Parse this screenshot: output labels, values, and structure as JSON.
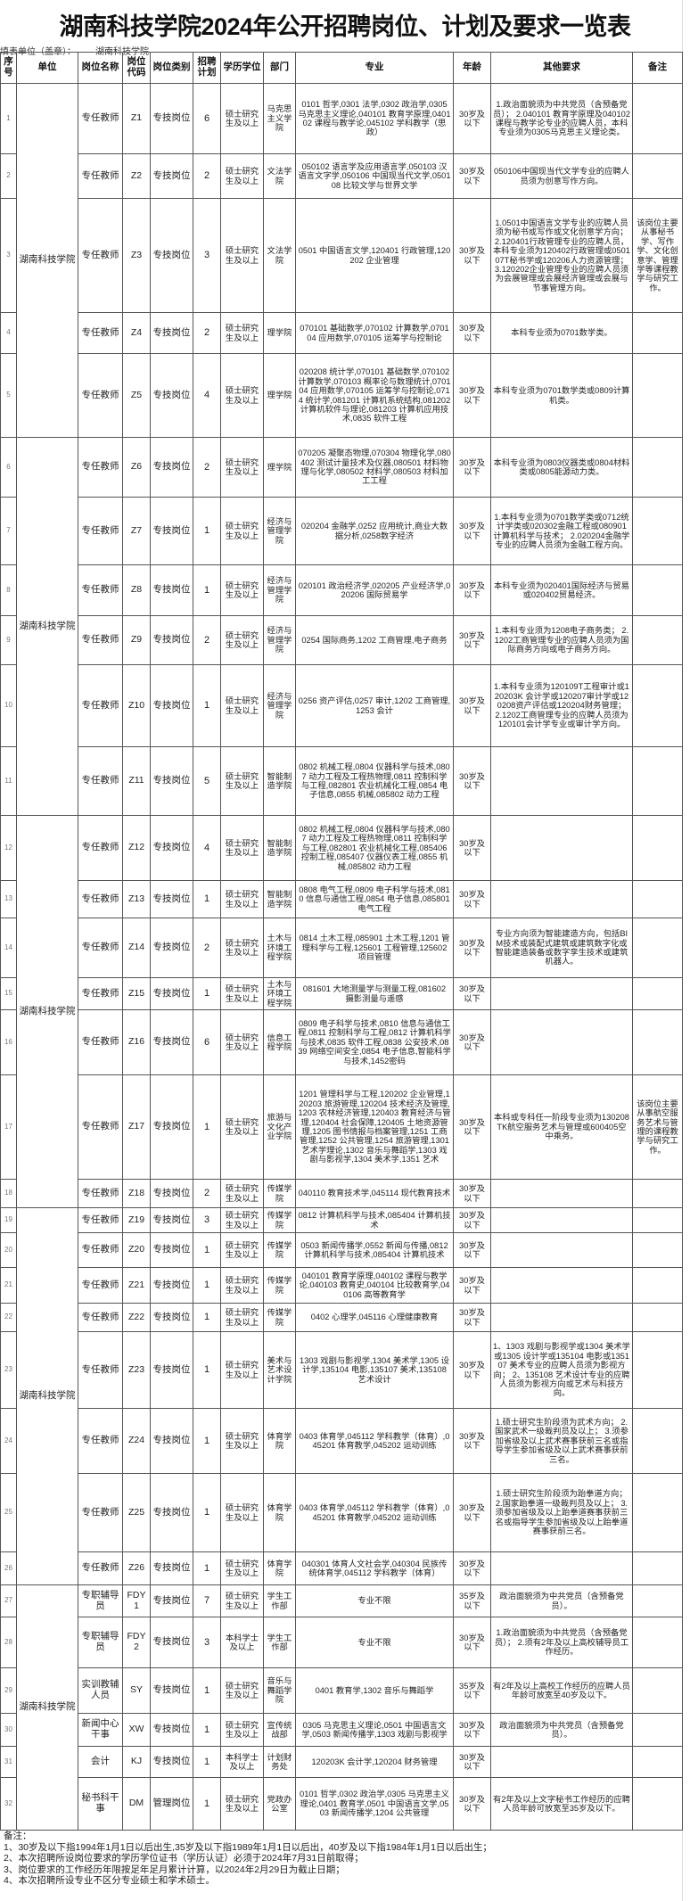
{
  "title": "湖南科技学院2024年公开招聘岗位、计划及要求一览表",
  "filler": {
    "label": "填表单位（盖章）：",
    "value": "湖南科技学院"
  },
  "headers": [
    "序号",
    "单位",
    "岗位名称",
    "岗位代码",
    "岗位类别",
    "招聘计划",
    "学历学位",
    "部门",
    "专业",
    "年龄",
    "其他要求",
    "备注"
  ],
  "unit_groups": [
    {
      "unit": "湖南科技学院",
      "from": 1,
      "to": 5
    },
    {
      "unit": "湖南科技学院",
      "from": 6,
      "to": 11
    },
    {
      "unit": "湖南科技学院",
      "from": 12,
      "to": 18
    },
    {
      "unit": "湖南科技学院",
      "from": 19,
      "to": 26
    },
    {
      "unit": "湖南科技学院",
      "from": 27,
      "to": 32
    }
  ],
  "rows": [
    {
      "no": "1",
      "post": "专任教师",
      "code": "Z1",
      "type": "专技岗位",
      "plan": "6",
      "edu": "硕士研究生及以上",
      "dept": "马克思主义学院",
      "major": "0101 哲学,0301 法学,0302 政治学,0305 马克思主义理论,040101 教育学原理,040102 课程与教学论,045102 学科教学（思政）",
      "age": "30岁及以下",
      "other": "1.政治面貌须为中共党员（含预备党员）； 2.040101 教育学原理及040102课程与教学论专业的应聘人员，本科专业须为0305马克思主义理论类。",
      "note": ""
    },
    {
      "no": "2",
      "post": "专任教师",
      "code": "Z2",
      "type": "专技岗位",
      "plan": "2",
      "edu": "硕士研究生及以上",
      "dept": "文法学院",
      "major": "050102 语言学及应用语言学,050103 汉语言文字学,050106 中国现当代文学,050108 比较文学与世界文学",
      "age": "30岁及以下",
      "other": "050106中国现当代文学专业的应聘人员须为创意写作方向。",
      "note": ""
    },
    {
      "no": "3",
      "post": "专任教师",
      "code": "Z3",
      "type": "专技岗位",
      "plan": "3",
      "edu": "硕士研究生及以上",
      "dept": "文法学院",
      "major": "0501 中国语言文学,120401 行政管理,120202 企业管理",
      "age": "30岁及以下",
      "other": "1.0501中国语言文学专业的应聘人员须为秘书或写作或文化创意学方向； 2.120401行政管理专业的应聘人员，本科专业须为120402行政管理或050107T秘书学或120206人力资源管理；3.120202企业管理专业的应聘人员须为会展管理或会展经济管理或会展与节事管理方向。",
      "note": "该岗位主要从事秘书学、写作学、文化创意学、管理学等课程教学与研究工作。"
    },
    {
      "no": "4",
      "post": "专任教师",
      "code": "Z4",
      "type": "专技岗位",
      "plan": "2",
      "edu": "硕士研究生及以上",
      "dept": "理学院",
      "major": "070101 基础数学,070102 计算数学,070104 应用数学,070105 运筹学与控制论",
      "age": "30岁及以下",
      "other": "本科专业须为0701数学类。",
      "note": ""
    },
    {
      "no": "5",
      "post": "专任教师",
      "code": "Z5",
      "type": "专技岗位",
      "plan": "4",
      "edu": "硕士研究生及以上",
      "dept": "理学院",
      "major": "020208 统计学,070101 基础数学,070102 计算数学,070103 概率论与数理统计,070104 应用数学,070105 运筹学与控制论,0714 统计学,081201 计算机系统结构,081202 计算机软件与理论,081203 计算机应用技术,0835 软件工程",
      "age": "30岁及以下",
      "other": "本科专业须为0701数学类或0809计算机类。",
      "note": ""
    },
    {
      "no": "6",
      "post": "专任教师",
      "code": "Z6",
      "type": "专技岗位",
      "plan": "2",
      "edu": "硕士研究生及以上",
      "dept": "理学院",
      "major": "070205 凝聚态物理,070304 物理化学,080402 测试计量技术及仪器,080501 材料物理与化学,080502 材料学,080503 材料加工工程",
      "age": "30岁及以下",
      "other": "本科专业须为0803仪器类或0804材料类或0805能源动力类。",
      "note": ""
    },
    {
      "no": "7",
      "post": "专任教师",
      "code": "Z7",
      "type": "专技岗位",
      "plan": "1",
      "edu": "硕士研究生及以上",
      "dept": "经济与管理学院",
      "major": "020204 金融学,0252 应用统计,商业大数据分析,0258数字经济",
      "age": "30岁及以下",
      "other": "1.本科专业须为0701数学类或0712统计学类或020302金融工程或080901计算机科学与技术； 2.020204金融学专业的应聘人员须为金融工程方向。",
      "note": ""
    },
    {
      "no": "8",
      "post": "专任教师",
      "code": "Z8",
      "type": "专技岗位",
      "plan": "1",
      "edu": "硕士研究生及以上",
      "dept": "经济与管理学院",
      "major": "020101 政治经济学,020205 产业经济学,020206 国际贸易学",
      "age": "30岁及以下",
      "other": "本科专业须为020401国际经济与贸易或020402贸易经济。",
      "note": ""
    },
    {
      "no": "9",
      "post": "专任教师",
      "code": "Z9",
      "type": "专技岗位",
      "plan": "2",
      "edu": "硕士研究生及以上",
      "dept": "经济与管理学院",
      "major": "0254 国际商务,1202 工商管理,电子商务",
      "age": "30岁及以下",
      "other": "1.本科专业须为1208电子商务类； 2.1202工商管理专业的应聘人员须为国际商务方向或电子商务方向。",
      "note": ""
    },
    {
      "no": "10",
      "post": "专任教师",
      "code": "Z10",
      "type": "专技岗位",
      "plan": "1",
      "edu": "硕士研究生及以上",
      "dept": "经济与管理学院",
      "major": "0256 资产评估,0257 审计,1202 工商管理,1253 会计",
      "age": "30岁及以下",
      "other": "1.本科专业须为120109T工程审计或120203K 会计学或120207审计学或120208资产评估或120204财务管理； 2.1202工商管理专业的应聘人员须为120101会计学专业或审计学方向。",
      "note": ""
    },
    {
      "no": "11",
      "post": "专任教师",
      "code": "Z11",
      "type": "专技岗位",
      "plan": "5",
      "edu": "硕士研究生及以上",
      "dept": "智能制造学院",
      "major": "0802 机械工程,0804 仪器科学与技术,0807 动力工程及工程热物理,0811 控制科学与工程,082801 农业机械化工程,0854 电子信息,0855 机械,085802 动力工程",
      "age": "30岁及以下",
      "other": "",
      "note": ""
    },
    {
      "no": "12",
      "post": "专任教师",
      "code": "Z12",
      "type": "专技岗位",
      "plan": "4",
      "edu": "硕士研究生及以上",
      "dept": "智能制造学院",
      "major": "0802 机械工程,0804 仪器科学与技术,0807 动力工程及工程热物理,0811 控制科学与工程,082801 农业机械化工程,085406 控制工程,085407 仪器仪表工程,0855 机械,085802 动力工程",
      "age": "30岁及以下",
      "other": "",
      "note": ""
    },
    {
      "no": "13",
      "post": "专任教师",
      "code": "Z13",
      "type": "专技岗位",
      "plan": "1",
      "edu": "硕士研究生及以上",
      "dept": "智能制造学院",
      "major": "0808 电气工程,0809 电子科学与技术,0810 信息与通信工程,0854 电子信息,085801 电气工程",
      "age": "30岁及以下",
      "other": "",
      "note": ""
    },
    {
      "no": "14",
      "post": "专任教师",
      "code": "Z14",
      "type": "专技岗位",
      "plan": "2",
      "edu": "硕士研究生及以上",
      "dept": "土木与环境工程学院",
      "major": "0814 土木工程,085901 土木工程,1201 管理科学与工程,125601 工程管理,125602 项目管理",
      "age": "30岁及以下",
      "other": "专业方向须为智能建造方向，包括BIM技术或装配式建筑或建筑数字化或智能建造装备或数字孪生技术或建筑机器人。",
      "note": ""
    },
    {
      "no": "15",
      "post": "专任教师",
      "code": "Z15",
      "type": "专技岗位",
      "plan": "1",
      "edu": "硕士研究生及以上",
      "dept": "土木与环境工程学院",
      "major": "081601 大地测量学与测量工程,081602 摄影测量与遥感",
      "age": "30岁及以下",
      "other": "",
      "note": ""
    },
    {
      "no": "16",
      "post": "专任教师",
      "code": "Z16",
      "type": "专技岗位",
      "plan": "6",
      "edu": "硕士研究生及以上",
      "dept": "信息工程学院",
      "major": "0809 电子科学与技术,0810 信息与通信工程,0811 控制科学与工程,0812 计算机科学与技术,0835 软件工程,0838 公安技术,0839 网络空间安全,0854 电子信息,智能科学与技术,1452密码",
      "age": "30岁及以下",
      "other": "",
      "note": ""
    },
    {
      "no": "17",
      "post": "专任教师",
      "code": "Z17",
      "type": "专技岗位",
      "plan": "1",
      "edu": "硕士研究生及以上",
      "dept": "旅游与文化产业学院",
      "major": "1201 管理科学与工程,120202 企业管理,120203 旅游管理,120204 技术经济及管理,1203 农林经济管理,120403 教育经济与管理,120404 社会保障,120405 土地资源管理,1205 图书情报与档案管理,1251 工商管理,1252 公共管理,1254 旅游管理,1301 艺术学理论,1302 音乐与舞蹈学,1303 戏剧与影视学,1304 美术学,1351 艺术",
      "age": "30岁及以下",
      "other": "本科或专科任一阶段专业须为130208TK航空服务艺术与管理或600405空中乘务。",
      "note": "该岗位主要从事航空服务艺术与管理的课程教学与研究工作。"
    },
    {
      "no": "18",
      "post": "专任教师",
      "code": "Z18",
      "type": "专技岗位",
      "plan": "2",
      "edu": "硕士研究生及以上",
      "dept": "传媒学院",
      "major": "040110 教育技术学,045114 现代教育技术",
      "age": "30岁及以下",
      "other": "",
      "note": ""
    },
    {
      "no": "19",
      "post": "专任教师",
      "code": "Z19",
      "type": "专技岗位",
      "plan": "3",
      "edu": "硕士研究生及以上",
      "dept": "传媒学院",
      "major": "0812 计算机科学与技术,085404 计算机技术",
      "age": "30岁及以下",
      "other": "",
      "note": ""
    },
    {
      "no": "20",
      "post": "专任教师",
      "code": "Z20",
      "type": "专技岗位",
      "plan": "1",
      "edu": "硕士研究生及以上",
      "dept": "传媒学院",
      "major": "0503 新闻传播学,0552 新闻与传播,0812 计算机科学与技术,085404 计算机技术",
      "age": "30岁及以下",
      "other": "",
      "note": ""
    },
    {
      "no": "21",
      "post": "专任教师",
      "code": "Z21",
      "type": "专技岗位",
      "plan": "1",
      "edu": "硕士研究生及以上",
      "dept": "传媒学院",
      "major": "040101 教育学原理,040102 课程与教学论,040103 教育史,040104 比较教育学,040106 高等教育学",
      "age": "30岁及以下",
      "other": "",
      "note": ""
    },
    {
      "no": "22",
      "post": "专任教师",
      "code": "Z22",
      "type": "专技岗位",
      "plan": "1",
      "edu": "硕士研究生及以上",
      "dept": "传媒学院",
      "major": "0402 心理学,045116 心理健康教育",
      "age": "30岁及以下",
      "other": "",
      "note": ""
    },
    {
      "no": "23",
      "post": "专任教师",
      "code": "Z23",
      "type": "专技岗位",
      "plan": "1",
      "edu": "硕士研究生及以上",
      "dept": "美术与艺术设计学院",
      "major": "1303 戏剧与影视学,1304 美术学,1305 设计学,135104 电影,135107 美术,135108 艺术设计",
      "age": "30岁及以下",
      "other": "1、1303 戏剧与影视学或1304 美术学或1305 设计学或135104 电影或135107 美术专业的应聘人员须为影视方向； 2、135108 艺术设计专业的应聘人员须为影视方向或艺术与科技方向。",
      "note": ""
    },
    {
      "no": "24",
      "post": "专任教师",
      "code": "Z24",
      "type": "专技岗位",
      "plan": "1",
      "edu": "硕士研究生及以上",
      "dept": "体育学院",
      "major": "0403 体育学,045112 学科教学（体育）,045201 体育教学,045202 运动训练",
      "age": "30岁及以下",
      "other": "1.硕士研究生阶段须为武术方向； 2.国家武术一级裁判员及以上； 3.须参加省级及以上武术赛事获前三名或指导学生参加省级及以上武术赛事获前三名。",
      "note": ""
    },
    {
      "no": "25",
      "post": "专任教师",
      "code": "Z25",
      "type": "专技岗位",
      "plan": "1",
      "edu": "硕士研究生及以上",
      "dept": "体育学院",
      "major": "0403 体育学,045112 学科教学（体育）,045201 体育教学,045202 运动训练",
      "age": "30岁及以下",
      "other": "1.硕士研究生阶段须为跆拳道方向； 2.国家跆拳道一级裁判员及以上； 3.须参加省级及以上跆拳道赛事获前三名或指导学生参加省级及以上跆拳道赛事获前三名。",
      "note": ""
    },
    {
      "no": "26",
      "post": "专任教师",
      "code": "Z26",
      "type": "专技岗位",
      "plan": "1",
      "edu": "硕士研究生及以上",
      "dept": "体育学院",
      "major": "040301 体育人文社会学,040304 民族传统体育学,045112 学科教学（体育）",
      "age": "30岁及以下",
      "other": "",
      "note": ""
    },
    {
      "no": "27",
      "post": "专职辅导员",
      "code": "FDY1",
      "type": "专技岗位",
      "plan": "7",
      "edu": "硕士研究生及以上",
      "dept": "学生工作部",
      "major": "专业不限",
      "age": "35岁及以下",
      "other": "政治面貌须为中共党员（含预备党员）。",
      "note": ""
    },
    {
      "no": "28",
      "post": "专职辅导员",
      "code": "FDY2",
      "type": "专技岗位",
      "plan": "3",
      "edu": "本科学士及以上",
      "dept": "学生工作部",
      "major": "专业不限",
      "age": "30岁及以下",
      "other": "1.政治面貌须为中共党员（含预备党员）； 2.须有2年及以上高校辅导员工作经历。",
      "note": ""
    },
    {
      "no": "29",
      "post": "实训教辅人员",
      "code": "SY",
      "type": "专技岗位",
      "plan": "1",
      "edu": "硕士研究生及以上",
      "dept": "音乐与舞蹈学院",
      "major": "0401 教育学,1302 音乐与舞蹈学",
      "age": "35岁及以下",
      "other": "有2年及以上高校工作经历的应聘人员年龄可放宽至40岁及以下。",
      "note": ""
    },
    {
      "no": "30",
      "post": "新闻中心干事",
      "code": "XW",
      "type": "专技岗位",
      "plan": "1",
      "edu": "硕士研究生及以上",
      "dept": "宣传统战部",
      "major": "0305 马克思主义理论,0501 中国语言文学,0503 新闻传播学,1303 戏剧与影视学",
      "age": "30岁及以下",
      "other": "政治面貌须为中共党员（含预备党员）。",
      "note": ""
    },
    {
      "no": "31",
      "post": "会计",
      "code": "KJ",
      "type": "专技岗位",
      "plan": "1",
      "edu": "本科学士及以上",
      "dept": "计划财务处",
      "major": "120203K 会计学,120204 财务管理",
      "age": "30岁及以下",
      "other": "",
      "note": ""
    },
    {
      "no": "32",
      "post": "秘书科干事",
      "code": "DM",
      "type": "管理岗位",
      "plan": "1",
      "edu": "硕士研究生及以上",
      "dept": "党政办公室",
      "major": "0101 哲学,0302 政治学,0305 马克思主义理论,0401 教育学,0501 中国语言文学,0503 新闻传播学,1204 公共管理",
      "age": "30岁及以下",
      "other": "有2年及以上文字秘书工作经历的应聘人员年龄可放宽至35岁及以下。",
      "note": ""
    }
  ],
  "notes": {
    "heading": "备注：",
    "items": [
      "1、30岁及以下指1994年1月1日以后出生,35岁及以下指1989年1月1日以后出，40岁及以下指1984年1月1日以后出生；",
      "2、本次招聘所设岗位要求的学历学位证书（学历认证）必须于2024年7月31日前取得；",
      "3、岗位要求的工作经历年限按足年足月累计计算，以2024年2月29日为截止日期；",
      "4、本次招聘所设专业不区分专业硕士和学术硕士。"
    ]
  }
}
